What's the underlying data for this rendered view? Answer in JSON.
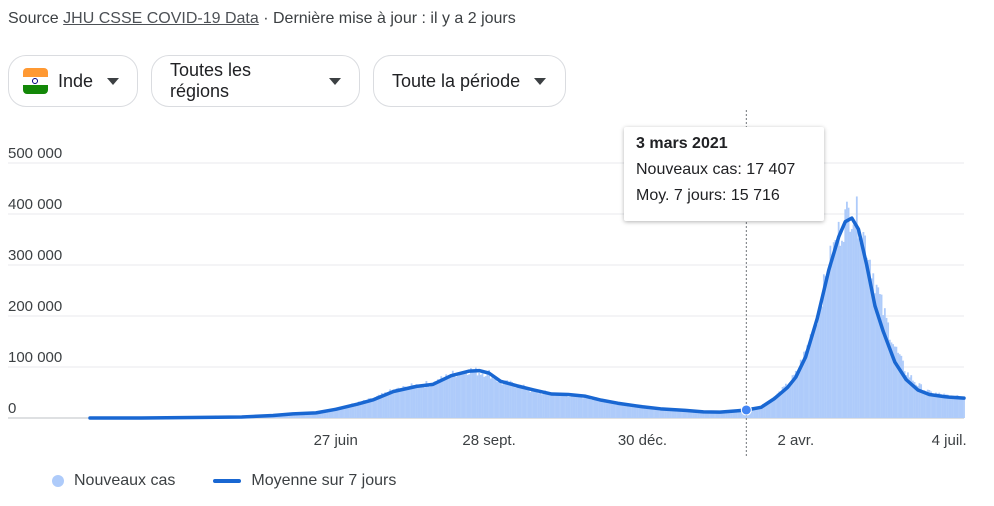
{
  "source": {
    "prefix": "Source",
    "link": "JHU CSSE COVID-19 Data",
    "suffix": "· Dernière mise à jour : il y a 2 jours"
  },
  "filters": {
    "country": "Inde",
    "region": "Toutes les régions",
    "period": "Toute la période"
  },
  "colors": {
    "bars": "#aecbfa",
    "line": "#1967d2",
    "grid": "#e8eaed"
  },
  "icons": {
    "country_flag": "india-flag-icon",
    "dropdown": "caret-down-icon"
  },
  "tooltip": {
    "date": "3 mars 2021",
    "new_cases_label": "Nouveaux cas:",
    "new_cases_value": "17 407",
    "avg_label": "Moy. 7 jours:",
    "avg_value": "15 716"
  },
  "legend": {
    "bars_label": "Nouveaux cas",
    "line_label": "Moyenne sur 7 jours"
  },
  "chart_data": {
    "type": "bar",
    "x_ticks": [
      "27 juin",
      "28 sept.",
      "30 déc.",
      "2 avr.",
      "4 juil."
    ],
    "x_tick_dates": [
      "2020-06-27",
      "2020-09-28",
      "2020-12-30",
      "2021-04-02",
      "2021-07-04"
    ],
    "y_ticks": [
      0,
      100000,
      200000,
      300000,
      400000,
      500000
    ],
    "y_tick_labels": [
      "0",
      "100 000",
      "200 000",
      "300 000",
      "400 000",
      "500 000"
    ],
    "ylim": [
      0,
      500000
    ],
    "xlim": [
      "2020-01-30",
      "2021-07-13"
    ],
    "grid": true,
    "legend_position": "bottom-left",
    "highlight": {
      "date": "2021-03-03",
      "new_cases": 17407,
      "avg_7d": 15716
    },
    "series": [
      {
        "name": "Nouveaux cas",
        "type": "bar",
        "dates": [
          "2020-01-30",
          "2020-03-01",
          "2020-04-01",
          "2020-05-01",
          "2020-05-20",
          "2020-06-01",
          "2020-06-15",
          "2020-06-27",
          "2020-07-10",
          "2020-07-20",
          "2020-08-01",
          "2020-08-15",
          "2020-08-25",
          "2020-09-05",
          "2020-09-16",
          "2020-09-22",
          "2020-09-28",
          "2020-10-05",
          "2020-10-15",
          "2020-10-25",
          "2020-11-05",
          "2020-11-15",
          "2020-11-25",
          "2020-12-05",
          "2020-12-15",
          "2020-12-30",
          "2021-01-10",
          "2021-01-25",
          "2021-02-05",
          "2021-02-15",
          "2021-02-25",
          "2021-03-03",
          "2021-03-12",
          "2021-03-20",
          "2021-03-28",
          "2021-04-02",
          "2021-04-08",
          "2021-04-15",
          "2021-04-22",
          "2021-04-28",
          "2021-05-02",
          "2021-05-06",
          "2021-05-10",
          "2021-05-15",
          "2021-05-20",
          "2021-05-25",
          "2021-06-01",
          "2021-06-08",
          "2021-06-15",
          "2021-06-22",
          "2021-07-01",
          "2021-07-04",
          "2021-07-13"
        ],
        "values": [
          0,
          50,
          1500,
          2500,
          6000,
          8500,
          11000,
          19000,
          29000,
          38000,
          54000,
          64000,
          68000,
          85000,
          94000,
          90000,
          88000,
          70000,
          65000,
          52000,
          48000,
          45000,
          42000,
          35000,
          28000,
          21000,
          17000,
          14000,
          11000,
          12000,
          16000,
          17407,
          24000,
          40000,
          65000,
          86000,
          130000,
          200000,
          300000,
          360000,
          390000,
          410000,
          390000,
          340000,
          270000,
          210000,
          140000,
          90000,
          65000,
          50000,
          45000,
          42000,
          40000
        ]
      },
      {
        "name": "Moyenne sur 7 jours",
        "type": "line",
        "dates": [
          "2020-01-30",
          "2020-03-01",
          "2020-04-01",
          "2020-05-01",
          "2020-05-20",
          "2020-06-01",
          "2020-06-15",
          "2020-06-27",
          "2020-07-10",
          "2020-07-20",
          "2020-08-01",
          "2020-08-15",
          "2020-08-25",
          "2020-09-05",
          "2020-09-16",
          "2020-09-22",
          "2020-09-28",
          "2020-10-05",
          "2020-10-15",
          "2020-10-25",
          "2020-11-05",
          "2020-11-15",
          "2020-11-25",
          "2020-12-05",
          "2020-12-15",
          "2020-12-30",
          "2021-01-10",
          "2021-01-25",
          "2021-02-05",
          "2021-02-15",
          "2021-02-25",
          "2021-03-03",
          "2021-03-12",
          "2021-03-20",
          "2021-03-28",
          "2021-04-02",
          "2021-04-08",
          "2021-04-15",
          "2021-04-22",
          "2021-04-28",
          "2021-05-02",
          "2021-05-06",
          "2021-05-10",
          "2021-05-15",
          "2021-05-20",
          "2021-05-25",
          "2021-06-01",
          "2021-06-08",
          "2021-06-15",
          "2021-06-22",
          "2021-07-01",
          "2021-07-04",
          "2021-07-13"
        ],
        "values": [
          0,
          30,
          1000,
          2000,
          5000,
          8000,
          10000,
          17000,
          27000,
          36000,
          52000,
          62000,
          66000,
          83000,
          92000,
          93000,
          88000,
          72000,
          63000,
          55000,
          47000,
          46000,
          43000,
          35000,
          29000,
          22000,
          18000,
          15000,
          12000,
          11500,
          14000,
          15716,
          21000,
          38000,
          60000,
          80000,
          120000,
          195000,
          290000,
          355000,
          385000,
          392000,
          370000,
          300000,
          220000,
          170000,
          110000,
          75000,
          55000,
          46000,
          42000,
          41000,
          39000
        ]
      }
    ]
  }
}
